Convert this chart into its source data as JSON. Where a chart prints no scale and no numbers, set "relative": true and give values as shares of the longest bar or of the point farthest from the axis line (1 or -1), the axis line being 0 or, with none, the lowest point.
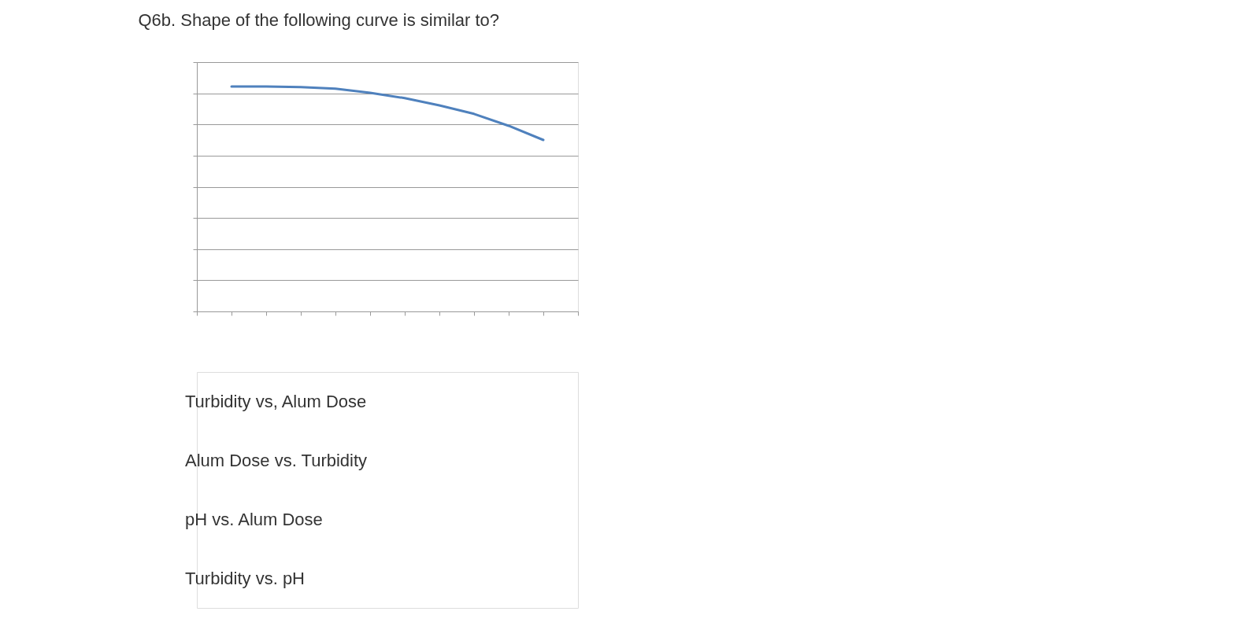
{
  "chart_data": {
    "type": "line",
    "title": "Q6b. Shape of the following curve is similar to?",
    "relative": true,
    "grid": "y",
    "categories": [
      null,
      null,
      null,
      null,
      null,
      null,
      null,
      null,
      null,
      null
    ],
    "series": [
      {
        "color": "#4f81bd",
        "values": [
          1,
          1,
          0.997,
          0.99,
          0.972,
          0.948,
          0.916,
          0.878,
          0.825,
          0.762
        ]
      }
    ],
    "annotations": [
      "Turbidity vs, Alum Dose",
      "Alum Dose vs. Turbidity",
      "pH vs. Alum Dose",
      "Turbidity vs. pH"
    ]
  }
}
